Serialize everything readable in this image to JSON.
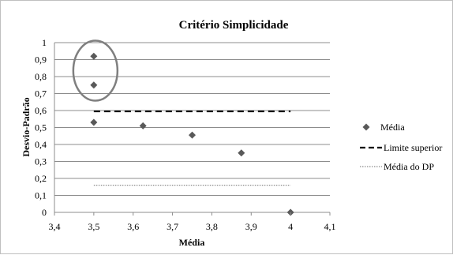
{
  "chart_data": {
    "type": "scatter",
    "title": "Critério Simplicidade",
    "xlabel": "Média",
    "ylabel": "Desvio-Padrão",
    "xlim": [
      3.4,
      4.1
    ],
    "ylim": [
      0,
      1
    ],
    "x_ticks": [
      "3,4",
      "3,5",
      "3,6",
      "3,7",
      "3,8",
      "3,9",
      "4",
      "4,1"
    ],
    "y_ticks": [
      "0",
      "0,1",
      "0,2",
      "0,3",
      "0,4",
      "0,5",
      "0,6",
      "0,7",
      "0,8",
      "0,9",
      "1"
    ],
    "grid": "horizontal",
    "legend_position": "right",
    "series": [
      {
        "name": "Média",
        "kind": "scatter",
        "marker": "diamond",
        "color": "#595959",
        "points": [
          {
            "x": 3.5,
            "y": 0.92
          },
          {
            "x": 3.5,
            "y": 0.75
          },
          {
            "x": 3.5,
            "y": 0.53
          },
          {
            "x": 3.625,
            "y": 0.51
          },
          {
            "x": 3.75,
            "y": 0.455
          },
          {
            "x": 3.875,
            "y": 0.35
          },
          {
            "x": 4.0,
            "y": 0.0
          }
        ]
      },
      {
        "name": "Limite superior",
        "kind": "line",
        "style": "dashed",
        "color": "#000000",
        "points": [
          {
            "x": 3.5,
            "y": 0.595
          },
          {
            "x": 4.0,
            "y": 0.595
          }
        ]
      },
      {
        "name": "Média do DP",
        "kind": "line",
        "style": "dotted",
        "color": "#8c8c8c",
        "points": [
          {
            "x": 3.5,
            "y": 0.16
          },
          {
            "x": 4.0,
            "y": 0.16
          }
        ]
      }
    ],
    "annotation": {
      "shape": "ellipse",
      "color": "#7f7f7f",
      "encloses": [
        {
          "x": 3.5,
          "y": 0.92
        },
        {
          "x": 3.5,
          "y": 0.75
        }
      ]
    }
  }
}
